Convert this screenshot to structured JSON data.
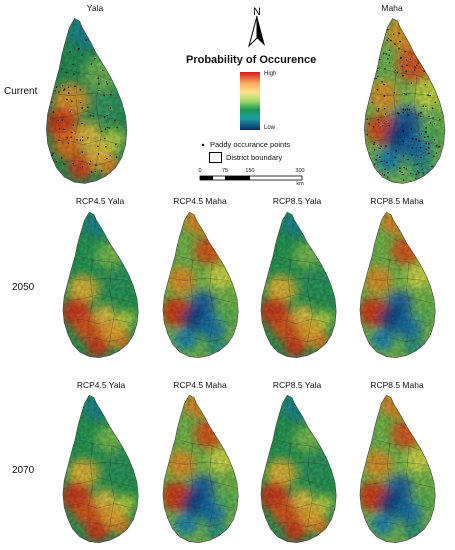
{
  "north_label": "N",
  "legend": {
    "title": "Probability of Occurence",
    "high": "High",
    "low": "Low",
    "points_label": "Paddy occurance points",
    "district_label": "District boundary",
    "scale_ticks": [
      "0",
      "75",
      "150",
      "300"
    ],
    "scale_unit": "km",
    "gradient": [
      "#d7191c",
      "#f46d43",
      "#fdae61",
      "#fee08b",
      "#d9ef8b",
      "#66bd63",
      "#1a9850",
      "#1a9f9f",
      "#2166ac",
      "#053061"
    ]
  },
  "rows": [
    {
      "label": "Current",
      "panels": [
        {
          "title": "Yala",
          "theme": "current-yala"
        },
        {
          "title": "Maha",
          "theme": "current-maha"
        }
      ]
    },
    {
      "label": "2050",
      "panels": [
        {
          "title": "RCP4.5 Yala",
          "theme": "yala"
        },
        {
          "title": "RCP4.5 Maha",
          "theme": "maha"
        },
        {
          "title": "RCP8.5 Yala",
          "theme": "yala"
        },
        {
          "title": "RCP8.5 Maha",
          "theme": "maha"
        }
      ]
    },
    {
      "label": "2070",
      "panels": [
        {
          "title": "RCP4.5 Yala",
          "theme": "yala"
        },
        {
          "title": "RCP4.5 Maha",
          "theme": "maha"
        },
        {
          "title": "RCP8.5 Yala",
          "theme": "yala"
        },
        {
          "title": "RCP8.5 Maha",
          "theme": "maha"
        }
      ]
    }
  ]
}
